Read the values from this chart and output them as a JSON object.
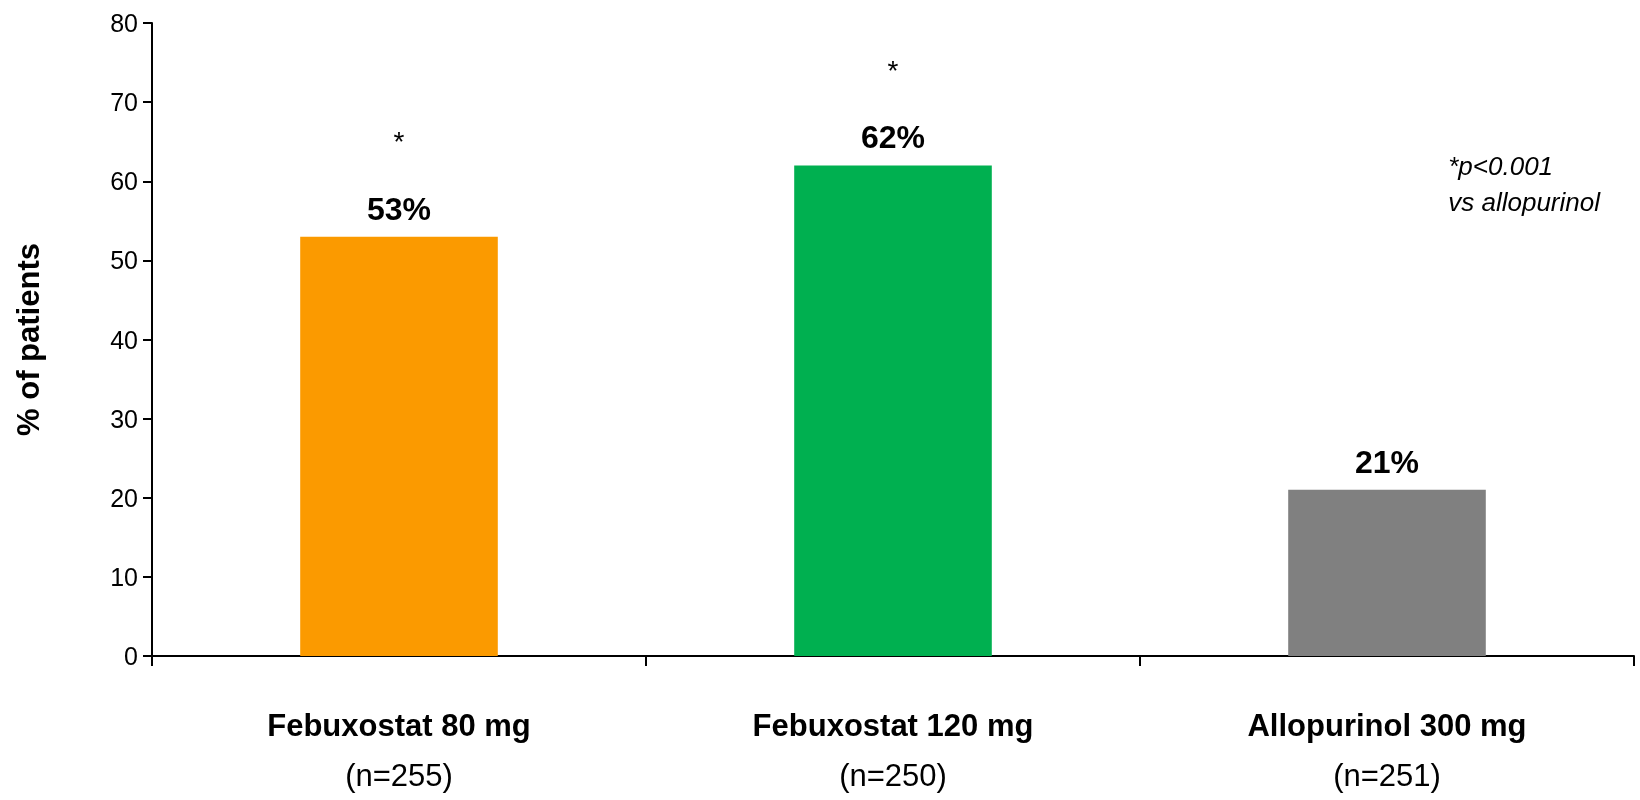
{
  "chart_data": {
    "type": "bar",
    "ylabel": "% of patients",
    "categories": [
      "Febuxostat 80 mg\n(n=255)",
      "Febuxostat 120 mg\n(n=250)",
      "Allopurinol 300 mg\n(n=251)"
    ],
    "values": [
      53,
      62,
      21
    ],
    "colors": [
      "#fb9a00",
      "#00b050",
      "#808080"
    ],
    "value_labels": [
      "53%",
      "62%",
      "21%"
    ],
    "ylim": [
      0,
      80
    ],
    "yticks": [
      0,
      10,
      20,
      30,
      40,
      50,
      60,
      70,
      80
    ],
    "grid": false,
    "annotations": [
      {
        "text": "*",
        "x": "Febuxostat 80 mg\n(n=255)",
        "y": 53
      },
      {
        "text": "*",
        "x": "Febuxostat 120 mg\n(n=250)",
        "y": 62
      },
      "*p<0.001\nvs allopurinol"
    ]
  }
}
